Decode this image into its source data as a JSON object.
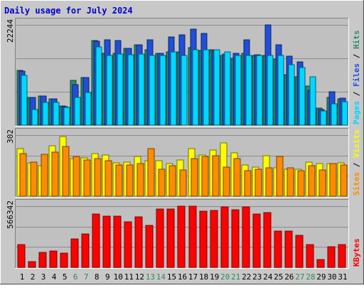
{
  "chart_data": {
    "type": "bar",
    "title": "Daily usage for July 2024",
    "categories": [
      "1",
      "2",
      "3",
      "4",
      "5",
      "6",
      "7",
      "8",
      "9",
      "10",
      "11",
      "12",
      "13",
      "14",
      "15",
      "16",
      "17",
      "18",
      "19",
      "20",
      "21",
      "22",
      "23",
      "24",
      "25",
      "26",
      "27",
      "28",
      "29",
      "30",
      "31"
    ],
    "weekend_days": [
      "6",
      "7",
      "13",
      "14",
      "20",
      "21",
      "27",
      "28"
    ],
    "panels": [
      {
        "name": "top",
        "ymax_label": "22244",
        "ymax": 22244,
        "side_labels": [
          "Pages",
          "Files",
          "Hits"
        ],
        "series": [
          {
            "name": "Hits",
            "color": "#2d8a6e",
            "values": [
              12200,
              6200,
              6400,
              5800,
              4200,
              9900,
              10600,
              18700,
              16000,
              16000,
              17100,
              17800,
              16700,
              16000,
              16200,
              16300,
              17200,
              16500,
              16700,
              15400,
              14800,
              16000,
              15500,
              15500,
              14600,
              11200,
              10700,
              8600,
              3800,
              6200,
              5800
            ]
          },
          {
            "name": "Files",
            "color": "#1f4fd8",
            "values": [
              12000,
              6200,
              6400,
              5800,
              4100,
              9000,
              10500,
              18600,
              19000,
              18700,
              17100,
              17800,
              19000,
              16000,
              19500,
              20100,
              21300,
              20300,
              16600,
              15800,
              16000,
              19000,
              15600,
              22244,
              17900,
              15300,
              14000,
              7800,
              3500,
              7400,
              6000
            ]
          },
          {
            "name": "Pages",
            "color": "#00d8ff",
            "values": [
              11000,
              3500,
              5000,
              5000,
              4000,
              6200,
              7300,
              17400,
              15400,
              15800,
              15600,
              15800,
              15400,
              15400,
              16300,
              15400,
              16700,
              16800,
              16700,
              16200,
              15500,
              15400,
              15500,
              15400,
              15400,
              13400,
              12800,
              10800,
              3200,
              4800,
              5200
            ]
          }
        ]
      },
      {
        "name": "middle",
        "ymax_label": "302",
        "ymax": 302,
        "side_labels": [
          "Sites",
          "Visits"
        ],
        "series": [
          {
            "name": "Visits",
            "color": "#ffff00",
            "values": [
              235,
              165,
              150,
              250,
              295,
              185,
              190,
              210,
              205,
              165,
              170,
              195,
              175,
              175,
              160,
              180,
              235,
              205,
              230,
              265,
              215,
              155,
              145,
              200,
              140,
              135,
              135,
              170,
              160,
              160,
              165
            ]
          },
          {
            "name": "Sites",
            "color": "#ff8c00",
            "values": [
              210,
              170,
              207,
              218,
              245,
              195,
              180,
              185,
              175,
              155,
              155,
              160,
              235,
              135,
              150,
              130,
              185,
              195,
              200,
              145,
              185,
              125,
              135,
              140,
              195,
              140,
              125,
              150,
              130,
              160,
              155
            ]
          }
        ]
      },
      {
        "name": "bottom",
        "ymax_label": "566342",
        "ymax": 566342,
        "side_labels": [
          "KBytes"
        ],
        "series": [
          {
            "name": "KBytes",
            "color": "#ff0000",
            "values": [
              214000,
              53000,
              137000,
              154000,
              129000,
              266000,
              309000,
              493000,
              474000,
              474000,
              424000,
              469000,
              390000,
              539000,
              539000,
              566342,
              566342,
              519000,
              524000,
              559000,
              534000,
              559000,
              494000,
              504000,
              339000,
              339000,
              294000,
              209000,
              74000,
              194000,
              209000
            ]
          }
        ]
      }
    ]
  }
}
